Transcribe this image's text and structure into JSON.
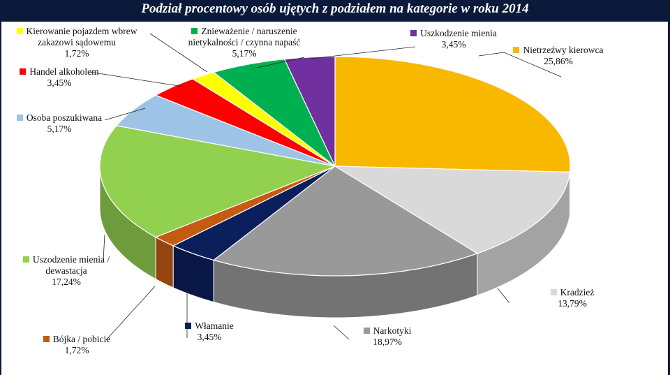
{
  "chart_data": {
    "type": "pie",
    "title": "Podział procentowy osób ujętych z podziałem na kategorie w roku 2014",
    "slices": [
      {
        "label": "Nietrzeźwy kierowca",
        "value": 25.86,
        "value_text": "25,86%",
        "color": "#f9b800"
      },
      {
        "label": "Kradzież",
        "value": 13.79,
        "value_text": "13,79%",
        "color": "#d9d9d9"
      },
      {
        "label": "Narkotyki",
        "value": 18.97,
        "value_text": "18,97%",
        "color": "#999999"
      },
      {
        "label": "Włamanie",
        "value": 3.45,
        "value_text": "3,45%",
        "color": "#0a1f5c"
      },
      {
        "label": "Bójka / pobicie",
        "value": 1.72,
        "value_text": "1,72%",
        "color": "#c55a11"
      },
      {
        "label": "Uszodzenie mienia / dewastacja",
        "value": 17.24,
        "value_text": "17,24%",
        "color": "#92d050"
      },
      {
        "label": "Osoba poszukiwana",
        "value": 5.17,
        "value_text": "5,17%",
        "color": "#9dc3e6"
      },
      {
        "label": "Handel alkoholem",
        "value": 3.45,
        "value_text": "3,45%",
        "color": "#ff0000"
      },
      {
        "label": "Kierowanie pojazdem wbrew zakazowi sądowemu",
        "value": 1.72,
        "value_text": "1,72%",
        "color": "#ffff00"
      },
      {
        "label": "Znieważenie / naruszenie nietykalności / czynna napaść",
        "value": 5.17,
        "value_text": "5,17%",
        "color": "#00b050"
      },
      {
        "label": "Uszkodzenie mienia",
        "value": 3.45,
        "value_text": "3,45%",
        "color": "#7030a0"
      }
    ]
  }
}
